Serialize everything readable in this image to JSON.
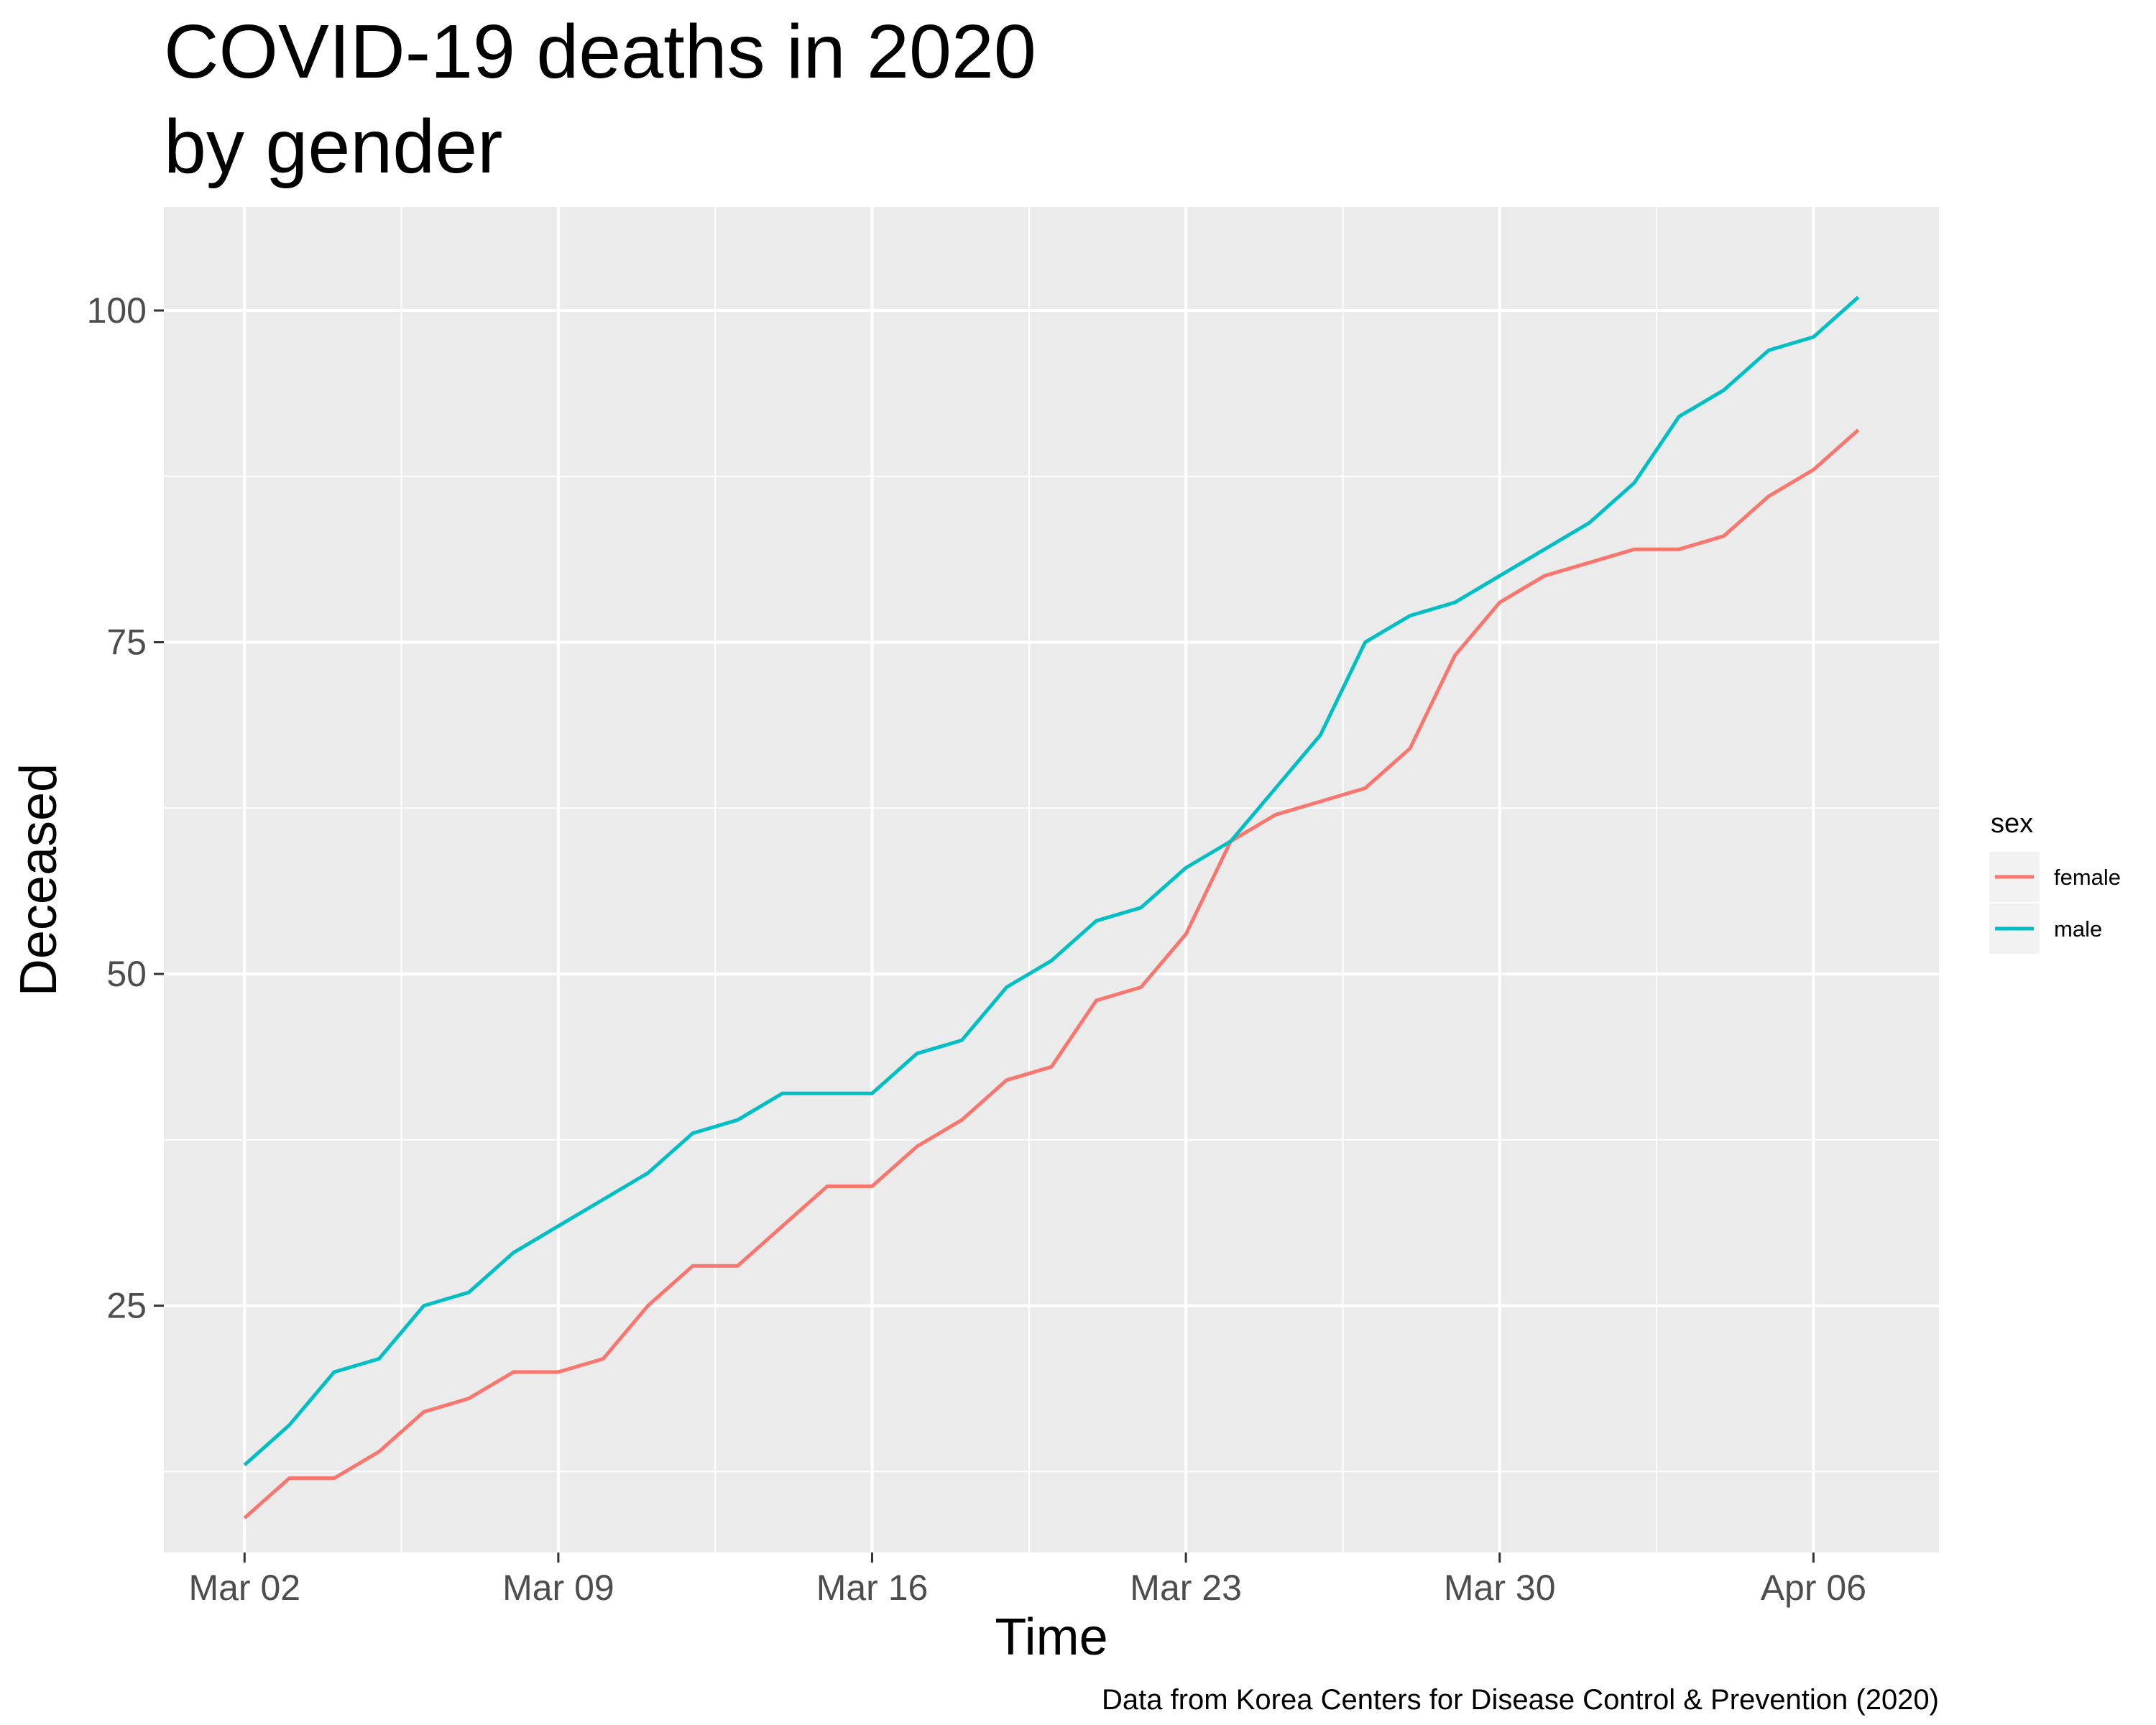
{
  "chart_data": {
    "type": "line",
    "title_line1": "COVID-19 deaths in 2020",
    "title_line2": "by gender",
    "xlabel": "Time",
    "ylabel": "Deceased",
    "caption": "Data from Korea Centers for Disease Control & Prevention (2020)",
    "legend_title": "sex",
    "legend_position": "right",
    "grid": true,
    "x_start_date": "2020-03-02",
    "x": [
      "Mar 02",
      "Mar 03",
      "Mar 04",
      "Mar 05",
      "Mar 06",
      "Mar 07",
      "Mar 08",
      "Mar 09",
      "Mar 10",
      "Mar 11",
      "Mar 12",
      "Mar 13",
      "Mar 14",
      "Mar 15",
      "Mar 16",
      "Mar 17",
      "Mar 18",
      "Mar 19",
      "Mar 20",
      "Mar 21",
      "Mar 22",
      "Mar 23",
      "Mar 24",
      "Mar 25",
      "Mar 26",
      "Mar 27",
      "Mar 28",
      "Mar 29",
      "Mar 30",
      "Mar 31",
      "Apr 01",
      "Apr 02",
      "Apr 03",
      "Apr 04",
      "Apr 05",
      "Apr 06",
      "Apr 07"
    ],
    "x_ticks": [
      "Mar 02",
      "Mar 09",
      "Mar 16",
      "Mar 23",
      "Mar 30",
      "Apr 06"
    ],
    "y_ticks": [
      25,
      50,
      75,
      100
    ],
    "ylim": [
      6.4,
      107.8
    ],
    "series": [
      {
        "name": "female",
        "color": "#F8766D",
        "values": [
          9,
          12,
          12,
          14,
          17,
          18,
          20,
          20,
          21,
          25,
          28,
          28,
          31,
          34,
          34,
          37,
          39,
          42,
          43,
          48,
          49,
          53,
          60,
          62,
          63,
          64,
          67,
          74,
          78,
          80,
          81,
          82,
          82,
          83,
          86,
          88,
          91
        ]
      },
      {
        "name": "male",
        "color": "#00BFC4",
        "values": [
          13,
          16,
          20,
          21,
          25,
          26,
          29,
          31,
          33,
          35,
          38,
          39,
          41,
          41,
          41,
          44,
          45,
          49,
          51,
          54,
          55,
          58,
          60,
          64,
          68,
          75,
          77,
          78,
          80,
          82,
          84,
          87,
          92,
          94,
          97,
          98,
          101
        ]
      }
    ]
  },
  "colors": {
    "panel_background": "#EBEBEB",
    "grid_major": "#FFFFFF",
    "legend_key_background": "#F2F2F2"
  }
}
